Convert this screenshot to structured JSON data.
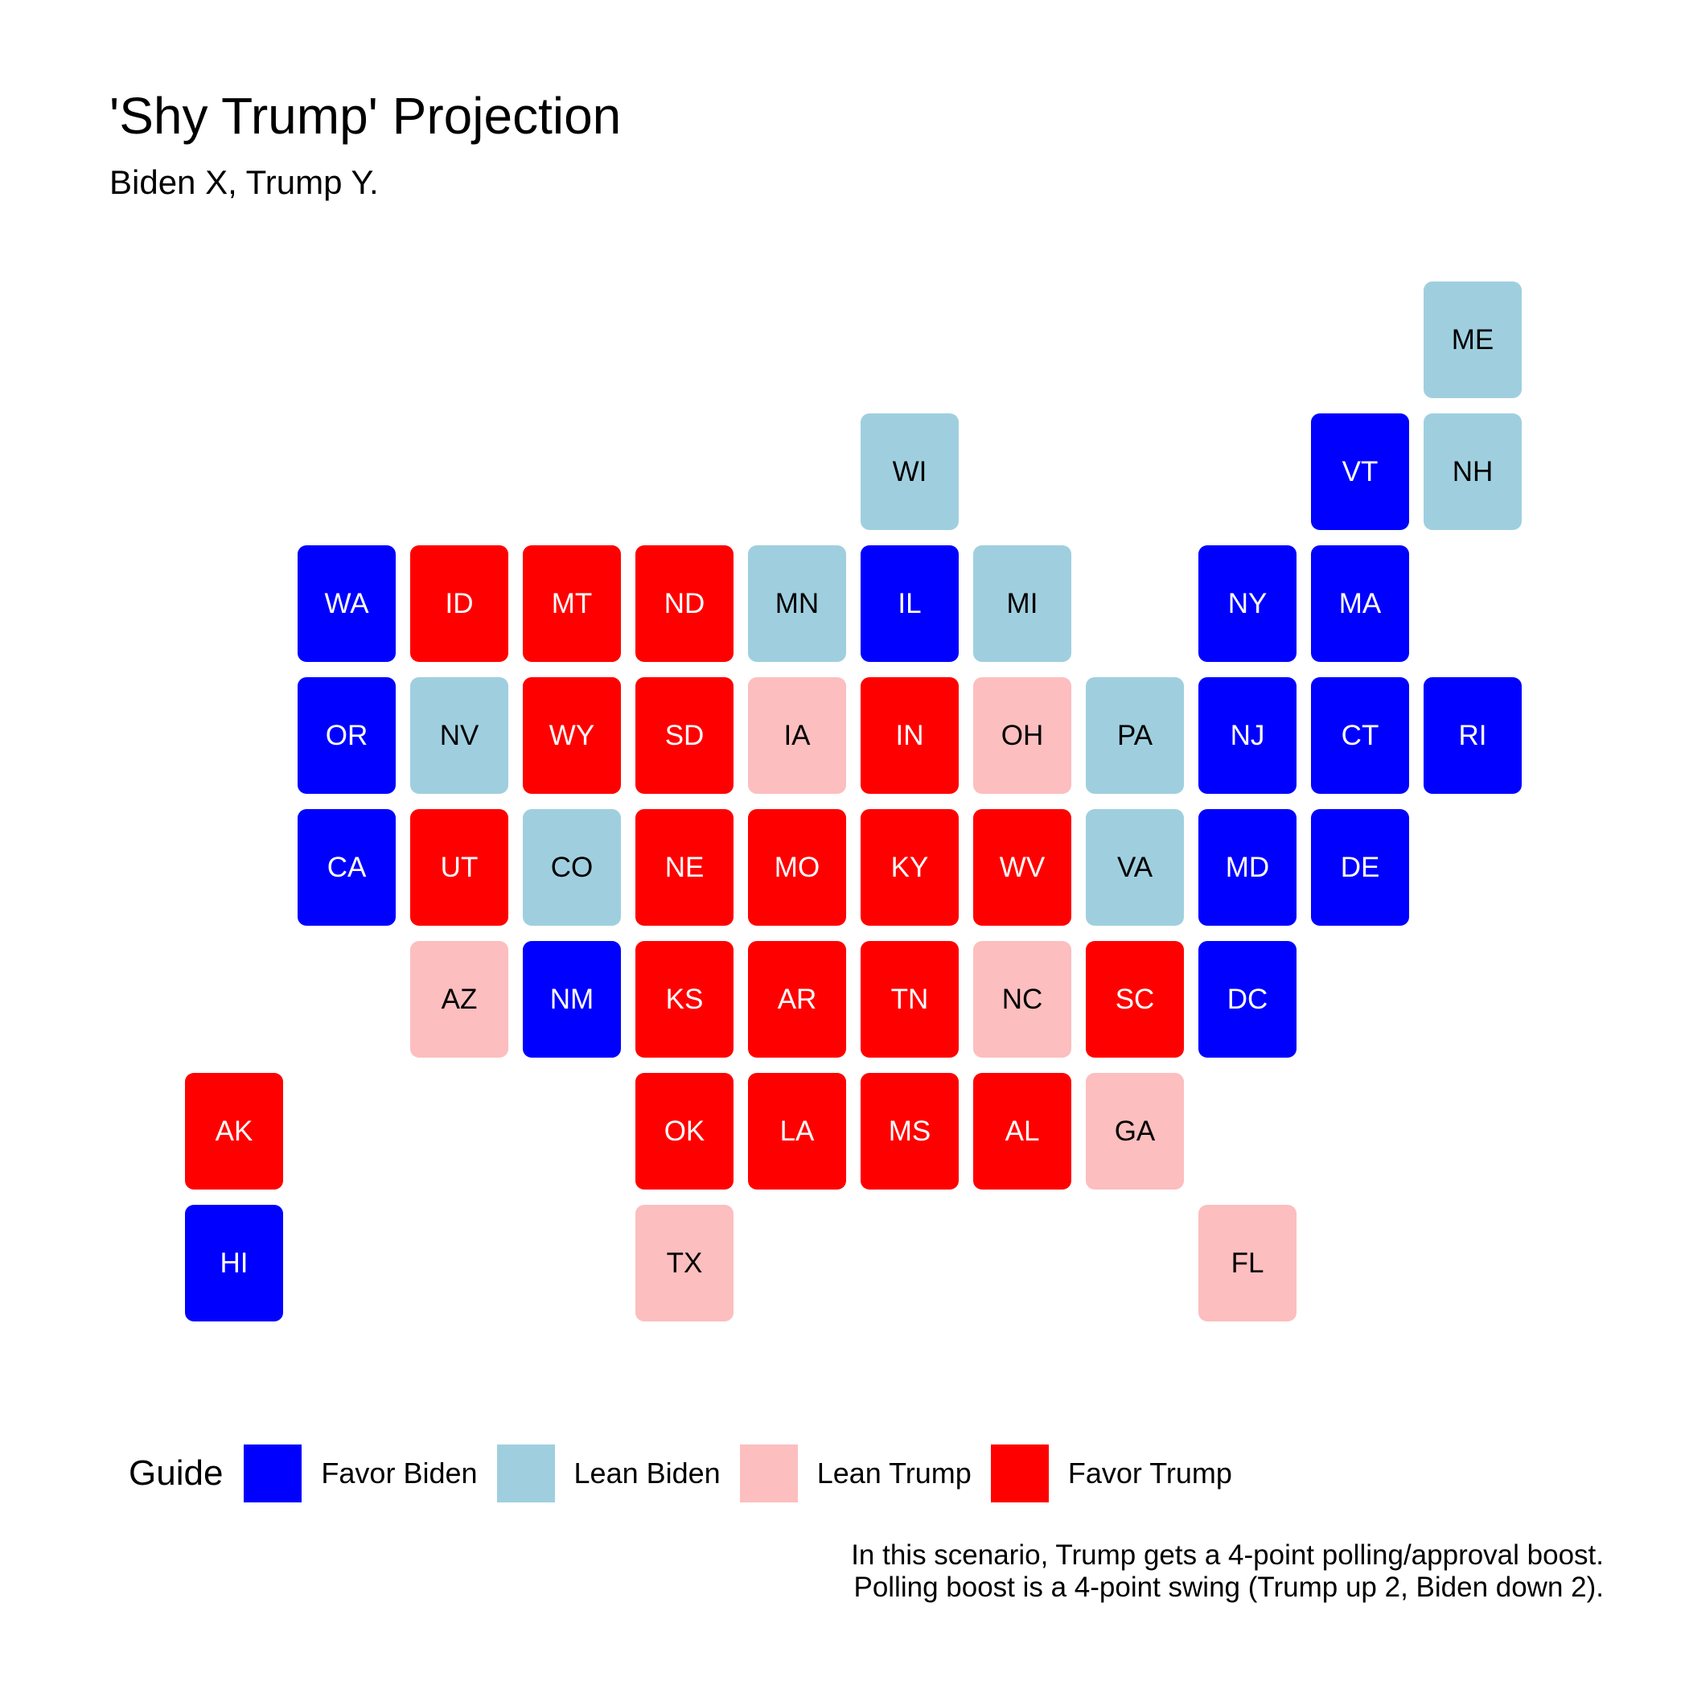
{
  "title": "'Shy Trump' Projection",
  "subtitle": "Biden X, Trump Y.",
  "categories": {
    "favor_biden": {
      "label": "Favor Biden",
      "color": "#0000FF",
      "text_color": "#FFFFFF"
    },
    "lean_biden": {
      "label": "Lean Biden",
      "color": "#9FCFDF",
      "text_color": "#000000"
    },
    "lean_trump": {
      "label": "Lean Trump",
      "color": "#FCBEBF",
      "text_color": "#000000"
    },
    "favor_trump": {
      "label": "Favor Trump",
      "color": "#FF0000",
      "text_color": "#FFFFFF"
    }
  },
  "legend": {
    "title": "Guide",
    "items": [
      "favor_biden",
      "lean_biden",
      "lean_trump",
      "favor_trump"
    ]
  },
  "states": [
    {
      "abbr": "ME",
      "col": 11,
      "row": 0,
      "category": "lean_biden"
    },
    {
      "abbr": "WI",
      "col": 6,
      "row": 1,
      "category": "lean_biden"
    },
    {
      "abbr": "VT",
      "col": 10,
      "row": 1,
      "category": "favor_biden"
    },
    {
      "abbr": "NH",
      "col": 11,
      "row": 1,
      "category": "lean_biden"
    },
    {
      "abbr": "WA",
      "col": 1,
      "row": 2,
      "category": "favor_biden"
    },
    {
      "abbr": "ID",
      "col": 2,
      "row": 2,
      "category": "favor_trump"
    },
    {
      "abbr": "MT",
      "col": 3,
      "row": 2,
      "category": "favor_trump"
    },
    {
      "abbr": "ND",
      "col": 4,
      "row": 2,
      "category": "favor_trump"
    },
    {
      "abbr": "MN",
      "col": 5,
      "row": 2,
      "category": "lean_biden"
    },
    {
      "abbr": "IL",
      "col": 6,
      "row": 2,
      "category": "favor_biden"
    },
    {
      "abbr": "MI",
      "col": 7,
      "row": 2,
      "category": "lean_biden"
    },
    {
      "abbr": "NY",
      "col": 9,
      "row": 2,
      "category": "favor_biden"
    },
    {
      "abbr": "MA",
      "col": 10,
      "row": 2,
      "category": "favor_biden"
    },
    {
      "abbr": "OR",
      "col": 1,
      "row": 3,
      "category": "favor_biden"
    },
    {
      "abbr": "NV",
      "col": 2,
      "row": 3,
      "category": "lean_biden"
    },
    {
      "abbr": "WY",
      "col": 3,
      "row": 3,
      "category": "favor_trump"
    },
    {
      "abbr": "SD",
      "col": 4,
      "row": 3,
      "category": "favor_trump"
    },
    {
      "abbr": "IA",
      "col": 5,
      "row": 3,
      "category": "lean_trump"
    },
    {
      "abbr": "IN",
      "col": 6,
      "row": 3,
      "category": "favor_trump"
    },
    {
      "abbr": "OH",
      "col": 7,
      "row": 3,
      "category": "lean_trump"
    },
    {
      "abbr": "PA",
      "col": 8,
      "row": 3,
      "category": "lean_biden"
    },
    {
      "abbr": "NJ",
      "col": 9,
      "row": 3,
      "category": "favor_biden"
    },
    {
      "abbr": "CT",
      "col": 10,
      "row": 3,
      "category": "favor_biden"
    },
    {
      "abbr": "RI",
      "col": 11,
      "row": 3,
      "category": "favor_biden"
    },
    {
      "abbr": "CA",
      "col": 1,
      "row": 4,
      "category": "favor_biden"
    },
    {
      "abbr": "UT",
      "col": 2,
      "row": 4,
      "category": "favor_trump"
    },
    {
      "abbr": "CO",
      "col": 3,
      "row": 4,
      "category": "lean_biden"
    },
    {
      "abbr": "NE",
      "col": 4,
      "row": 4,
      "category": "favor_trump"
    },
    {
      "abbr": "MO",
      "col": 5,
      "row": 4,
      "category": "favor_trump"
    },
    {
      "abbr": "KY",
      "col": 6,
      "row": 4,
      "category": "favor_trump"
    },
    {
      "abbr": "WV",
      "col": 7,
      "row": 4,
      "category": "favor_trump"
    },
    {
      "abbr": "VA",
      "col": 8,
      "row": 4,
      "category": "lean_biden"
    },
    {
      "abbr": "MD",
      "col": 9,
      "row": 4,
      "category": "favor_biden"
    },
    {
      "abbr": "DE",
      "col": 10,
      "row": 4,
      "category": "favor_biden"
    },
    {
      "abbr": "AZ",
      "col": 2,
      "row": 5,
      "category": "lean_trump"
    },
    {
      "abbr": "NM",
      "col": 3,
      "row": 5,
      "category": "favor_biden"
    },
    {
      "abbr": "KS",
      "col": 4,
      "row": 5,
      "category": "favor_trump"
    },
    {
      "abbr": "AR",
      "col": 5,
      "row": 5,
      "category": "favor_trump"
    },
    {
      "abbr": "TN",
      "col": 6,
      "row": 5,
      "category": "favor_trump"
    },
    {
      "abbr": "NC",
      "col": 7,
      "row": 5,
      "category": "lean_trump"
    },
    {
      "abbr": "SC",
      "col": 8,
      "row": 5,
      "category": "favor_trump"
    },
    {
      "abbr": "DC",
      "col": 9,
      "row": 5,
      "category": "favor_biden"
    },
    {
      "abbr": "AK",
      "col": 0,
      "row": 6,
      "category": "favor_trump"
    },
    {
      "abbr": "OK",
      "col": 4,
      "row": 6,
      "category": "favor_trump"
    },
    {
      "abbr": "LA",
      "col": 5,
      "row": 6,
      "category": "favor_trump"
    },
    {
      "abbr": "MS",
      "col": 6,
      "row": 6,
      "category": "favor_trump"
    },
    {
      "abbr": "AL",
      "col": 7,
      "row": 6,
      "category": "favor_trump"
    },
    {
      "abbr": "GA",
      "col": 8,
      "row": 6,
      "category": "lean_trump"
    },
    {
      "abbr": "HI",
      "col": 0,
      "row": 7,
      "category": "favor_biden"
    },
    {
      "abbr": "TX",
      "col": 4,
      "row": 7,
      "category": "lean_trump"
    },
    {
      "abbr": "FL",
      "col": 9,
      "row": 7,
      "category": "lean_trump"
    }
  ],
  "caption": {
    "line1": "In this scenario, Trump gets a 4-point polling/approval boost.",
    "line2": "Polling boost is a 4-point swing (Trump up 2, Biden down 2)."
  }
}
